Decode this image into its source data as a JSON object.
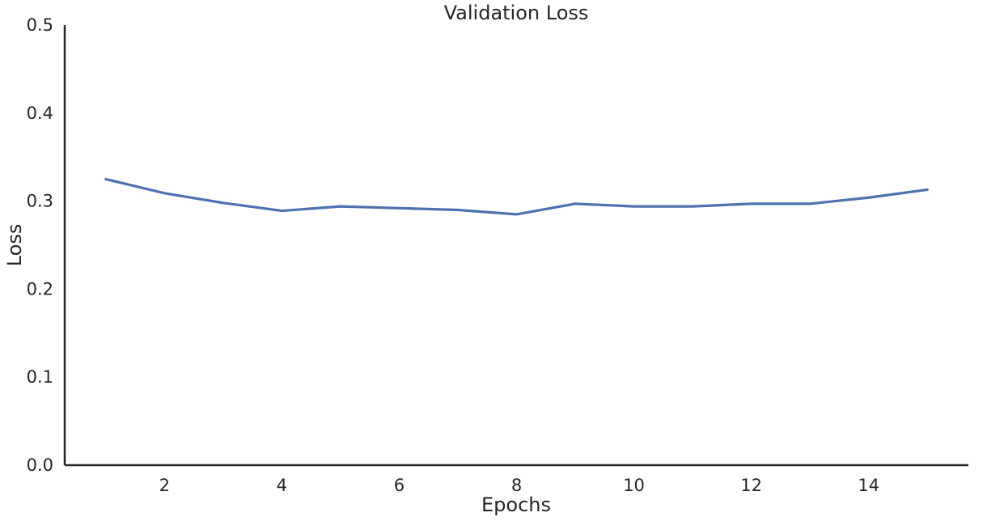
{
  "chart_data": {
    "type": "line",
    "title": "Validation Loss",
    "xlabel": "Epochs",
    "ylabel": "Loss",
    "xlim": [
      0.3,
      15.7
    ],
    "ylim": [
      0.0,
      0.5
    ],
    "xticks": [
      2,
      4,
      6,
      8,
      10,
      12,
      14
    ],
    "xtick_labels": [
      "2",
      "4",
      "6",
      "8",
      "10",
      "12",
      "14"
    ],
    "yticks": [
      0.0,
      0.1,
      0.2,
      0.3,
      0.4,
      0.5
    ],
    "ytick_labels": [
      "0.0",
      "0.1",
      "0.2",
      "0.3",
      "0.4",
      "0.5"
    ],
    "grid": false,
    "legend": "none",
    "series": [
      {
        "color": "#4c72b0",
        "x": [
          1,
          2,
          3,
          4,
          5,
          6,
          7,
          8,
          9,
          10,
          11,
          12,
          13,
          14,
          15
        ],
        "y": [
          0.325,
          0.309,
          0.298,
          0.289,
          0.294,
          0.292,
          0.29,
          0.285,
          0.297,
          0.294,
          0.294,
          0.297,
          0.297,
          0.304,
          0.313
        ]
      }
    ]
  }
}
